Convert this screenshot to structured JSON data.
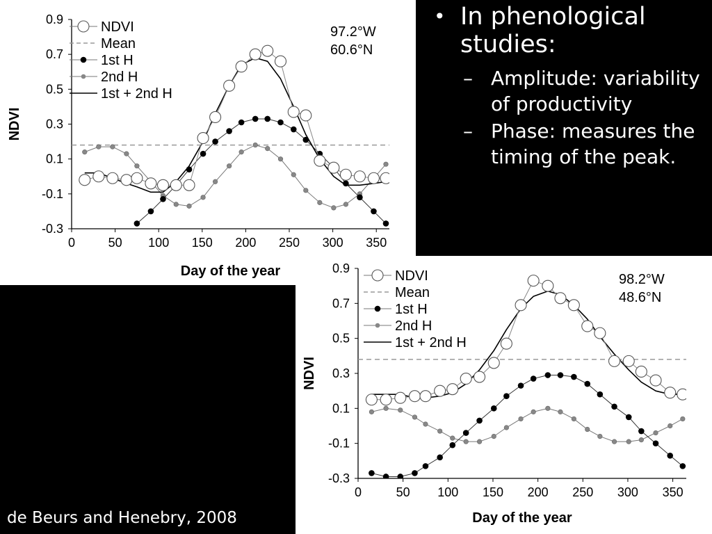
{
  "slide": {
    "bullet": "In phenological studies:",
    "subpoints": [
      "Amplitude: variability of productivity",
      "Phase: measures the timing of the peak."
    ],
    "credit": "de Beurs and Henebry, 2008",
    "bullet_glyph": "•",
    "dash_glyph": "–"
  },
  "chart_data": [
    {
      "type": "line",
      "annotation": [
        "97.2°W",
        "60.6°N"
      ],
      "xlabel": "Day of the year",
      "ylabel": "NDVI",
      "xlim": [
        0,
        365
      ],
      "ylim": [
        -0.3,
        0.9
      ],
      "xticks": [
        0,
        50,
        100,
        150,
        200,
        250,
        300,
        350
      ],
      "yticks": [
        -0.3,
        -0.1,
        0.1,
        0.3,
        0.5,
        0.7,
        0.9
      ],
      "ytick_labels": [
        "-0.3",
        "-0.1",
        "0.1",
        "0.3",
        "0.5",
        "0.7",
        "0.9"
      ],
      "grid": false,
      "legend": "top-left",
      "legend_entries": [
        "NDVI",
        "Mean",
        "1st H",
        "2nd H",
        "1st + 2nd H"
      ],
      "series": [
        {
          "name": "NDVI",
          "style": "open-circles",
          "x": [
            15,
            31,
            47,
            63,
            75,
            91,
            105,
            120,
            135,
            151,
            165,
            181,
            195,
            211,
            225,
            240,
            255,
            269,
            285,
            301,
            315,
            331,
            347,
            361
          ],
          "y": [
            -0.02,
            0.0,
            -0.01,
            -0.02,
            -0.01,
            -0.04,
            -0.05,
            -0.05,
            -0.05,
            0.22,
            0.34,
            0.52,
            0.63,
            0.7,
            0.72,
            0.66,
            0.37,
            0.35,
            0.09,
            0.05,
            0.01,
            0.0,
            -0.01,
            -0.01
          ]
        },
        {
          "name": "Mean",
          "style": "dashed",
          "x": [
            0,
            365
          ],
          "y": [
            0.18,
            0.18
          ]
        },
        {
          "name": "1st H",
          "style": "black-dots",
          "x": [
            75,
            91,
            105,
            120,
            135,
            151,
            165,
            181,
            195,
            211,
            225,
            240,
            255,
            269,
            285,
            301,
            315,
            331,
            347,
            361
          ],
          "y": [
            -0.27,
            -0.2,
            -0.13,
            -0.05,
            0.04,
            0.13,
            0.2,
            0.26,
            0.31,
            0.33,
            0.33,
            0.31,
            0.27,
            0.21,
            0.13,
            0.05,
            -0.04,
            -0.12,
            -0.2,
            -0.27
          ]
        },
        {
          "name": "2nd H",
          "style": "gray-dots",
          "x": [
            15,
            31,
            47,
            63,
            75,
            91,
            105,
            120,
            135,
            151,
            165,
            181,
            195,
            211,
            225,
            240,
            255,
            269,
            285,
            301,
            315,
            331,
            347,
            361
          ],
          "y": [
            0.14,
            0.17,
            0.17,
            0.13,
            0.06,
            -0.03,
            -0.11,
            -0.16,
            -0.17,
            -0.12,
            -0.03,
            0.06,
            0.14,
            0.18,
            0.16,
            0.1,
            0.01,
            -0.08,
            -0.15,
            -0.18,
            -0.16,
            -0.1,
            -0.01,
            0.07
          ]
        },
        {
          "name": "1st + 2nd H",
          "style": "solid",
          "x": [
            15,
            31,
            47,
            63,
            75,
            91,
            105,
            120,
            135,
            151,
            165,
            181,
            195,
            211,
            225,
            240,
            255,
            269,
            285,
            301,
            315,
            331,
            347,
            361
          ],
          "y": [
            0.02,
            0.02,
            -0.01,
            -0.04,
            -0.06,
            -0.09,
            -0.09,
            -0.03,
            0.06,
            0.2,
            0.36,
            0.52,
            0.64,
            0.68,
            0.66,
            0.56,
            0.4,
            0.24,
            0.1,
            0.0,
            -0.05,
            -0.05,
            -0.04,
            -0.03
          ]
        }
      ]
    },
    {
      "type": "line",
      "annotation": [
        "98.2°W",
        "48.6°N"
      ],
      "xlabel": "Day of the year",
      "ylabel": "NDVI",
      "xlim": [
        0,
        365
      ],
      "ylim": [
        -0.3,
        0.9
      ],
      "xticks": [
        0,
        50,
        100,
        150,
        200,
        250,
        300,
        350
      ],
      "yticks": [
        -0.3,
        -0.1,
        0.1,
        0.3,
        0.5,
        0.7,
        0.9
      ],
      "ytick_labels": [
        "-0.3",
        "-0.1",
        "0.1",
        "0.3",
        "0.5",
        "0.7",
        "0.9"
      ],
      "grid": false,
      "legend": "top-left",
      "legend_entries": [
        "NDVI",
        "Mean",
        "1st H",
        "2nd H",
        "1st + 2nd H"
      ],
      "series": [
        {
          "name": "NDVI",
          "style": "open-circles",
          "x": [
            15,
            31,
            47,
            63,
            75,
            91,
            105,
            120,
            135,
            151,
            165,
            181,
            195,
            211,
            225,
            240,
            255,
            269,
            285,
            301,
            315,
            331,
            347,
            361
          ],
          "y": [
            0.15,
            0.15,
            0.16,
            0.17,
            0.17,
            0.2,
            0.21,
            0.27,
            0.28,
            0.36,
            0.47,
            0.69,
            0.83,
            0.8,
            0.73,
            0.69,
            0.57,
            0.53,
            0.37,
            0.37,
            0.31,
            0.26,
            0.19,
            0.18
          ]
        },
        {
          "name": "Mean",
          "style": "dashed",
          "x": [
            0,
            365
          ],
          "y": [
            0.38,
            0.38
          ]
        },
        {
          "name": "1st H",
          "style": "black-dots",
          "x": [
            15,
            31,
            47,
            63,
            75,
            91,
            105,
            120,
            135,
            151,
            165,
            181,
            195,
            211,
            225,
            240,
            255,
            269,
            285,
            301,
            315,
            331,
            347,
            361
          ],
          "y": [
            -0.27,
            -0.29,
            -0.29,
            -0.27,
            -0.23,
            -0.18,
            -0.11,
            -0.04,
            0.03,
            0.1,
            0.17,
            0.23,
            0.27,
            0.29,
            0.29,
            0.28,
            0.24,
            0.18,
            0.11,
            0.05,
            -0.03,
            -0.1,
            -0.17,
            -0.23
          ]
        },
        {
          "name": "2nd H",
          "style": "gray-dots",
          "x": [
            15,
            31,
            47,
            63,
            75,
            91,
            105,
            120,
            135,
            151,
            165,
            181,
            195,
            211,
            225,
            240,
            255,
            269,
            285,
            301,
            315,
            331,
            347,
            361
          ],
          "y": [
            0.08,
            0.1,
            0.09,
            0.05,
            0.01,
            -0.03,
            -0.07,
            -0.09,
            -0.09,
            -0.06,
            -0.01,
            0.04,
            0.08,
            0.1,
            0.08,
            0.04,
            -0.02,
            -0.06,
            -0.09,
            -0.09,
            -0.08,
            -0.04,
            0.0,
            0.04
          ]
        },
        {
          "name": "1st + 2nd H",
          "style": "solid",
          "x": [
            15,
            31,
            47,
            63,
            75,
            91,
            105,
            120,
            135,
            151,
            165,
            181,
            195,
            211,
            225,
            240,
            255,
            269,
            285,
            301,
            315,
            331,
            347,
            361
          ],
          "y": [
            0.18,
            0.18,
            0.18,
            0.16,
            0.16,
            0.17,
            0.19,
            0.24,
            0.32,
            0.43,
            0.55,
            0.67,
            0.74,
            0.77,
            0.75,
            0.69,
            0.61,
            0.51,
            0.41,
            0.32,
            0.25,
            0.2,
            0.18,
            0.18
          ]
        }
      ]
    }
  ]
}
